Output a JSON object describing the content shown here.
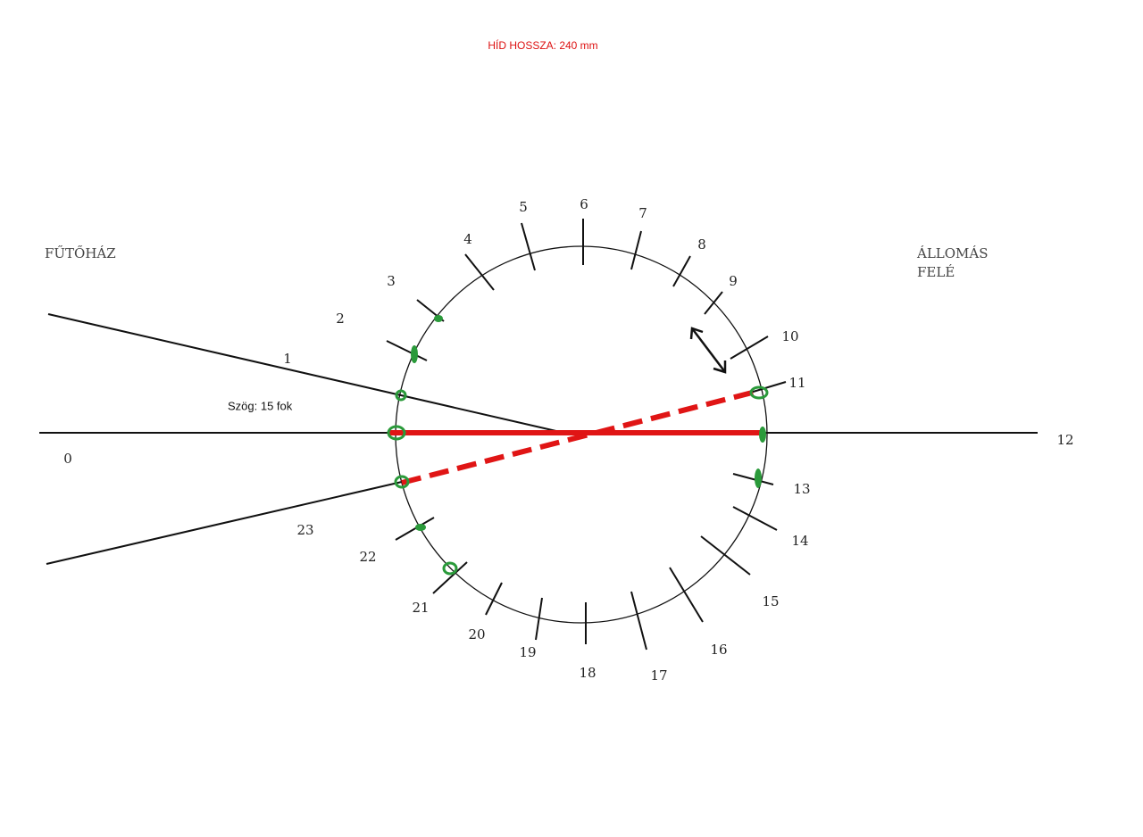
{
  "header": {
    "title": "HÍD HOSSZA: 240 mm"
  },
  "labels": {
    "left_destination": "FŰTŐHÁZ",
    "right_destination": [
      "ÁLLOMÁS",
      "FELÉ"
    ],
    "angle": "Szög: 15 fok"
  },
  "tracks": [
    "0",
    "1",
    "2",
    "3",
    "4",
    "5",
    "6",
    "7",
    "8",
    "9",
    "10",
    "11",
    "12",
    "13",
    "14",
    "15",
    "16",
    "17",
    "18",
    "19",
    "20",
    "21",
    "22",
    "23"
  ]
}
